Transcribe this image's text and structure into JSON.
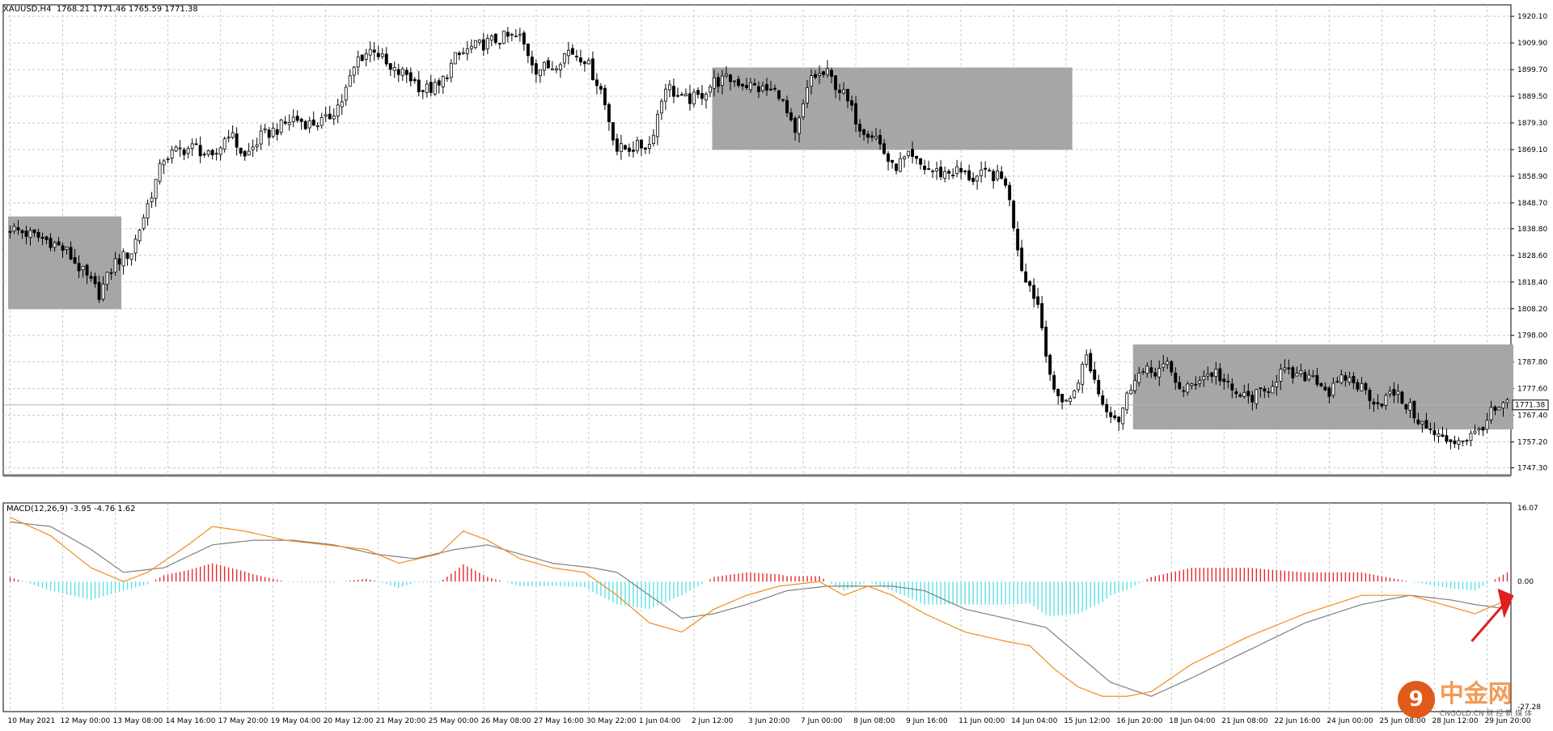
{
  "header": {
    "symbol": "XAUUSD,H4",
    "ohlc": "1768.21 1771.46 1765.59 1771.38"
  },
  "macd_header": "MACD(12,26,9) -3.95 -4.76 1.62",
  "current_price_label": "1771.38",
  "colors": {
    "bull": "#ffffff",
    "bear": "#000000",
    "box": "#a6a6a6",
    "grid": "#c8c8c8",
    "hist_pos": "#e32b2b",
    "hist_neg": "#5ee0e8",
    "macd_line": "#f08c1c",
    "signal_line": "#808080",
    "arrow": "#e01f1f"
  },
  "watermark": {
    "cn": "中金网",
    "en": "CNGOLD.CN 财 经 新 媒 体"
  },
  "chart_data": [
    {
      "type": "candlestick",
      "title": "XAUUSD,H4",
      "ylim": [
        1745.0,
        1922.0
      ],
      "y_ticks": [
        "1920.10",
        "1909.90",
        "1899.70",
        "1889.50",
        "1879.30",
        "1869.10",
        "1858.90",
        "1848.70",
        "1838.80",
        "1828.60",
        "1818.40",
        "1808.20",
        "1798.00",
        "1787.80",
        "1777.60",
        "1767.40",
        "1757.20",
        "1747.30"
      ],
      "x_tick_labels": [
        "10 May 2021",
        "12 May 00:00",
        "13 May 08:00",
        "14 May 16:00",
        "17 May 20:00",
        "19 May 04:00",
        "20 May 12:00",
        "21 May 20:00",
        "25 May 00:00",
        "26 May 08:00",
        "27 May 16:00",
        "30 May 22:00",
        "1 Jun 04:00",
        "2 Jun 12:00",
        "3 Jun 20:00",
        "7 Jun 00:00",
        "8 Jun 08:00",
        "9 Jun 16:00",
        "11 Jun 00:00",
        "14 Jun 04:00",
        "15 Jun 12:00",
        "16 Jun 20:00",
        "18 Jun 04:00",
        "21 Jun 08:00",
        "22 Jun 16:00",
        "24 Jun 00:00",
        "25 Jun 08:00",
        "28 Jun 12:00",
        "29 Jun 20:00"
      ],
      "anchors": [
        [
          0,
          1839
        ],
        [
          6,
          1836
        ],
        [
          10,
          1834
        ],
        [
          14,
          1830
        ],
        [
          18,
          1822
        ],
        [
          22,
          1814
        ],
        [
          26,
          1826
        ],
        [
          30,
          1830
        ],
        [
          34,
          1848
        ],
        [
          38,
          1866
        ],
        [
          42,
          1869
        ],
        [
          46,
          1870
        ],
        [
          50,
          1865
        ],
        [
          54,
          1876
        ],
        [
          58,
          1866
        ],
        [
          62,
          1874
        ],
        [
          66,
          1877
        ],
        [
          70,
          1881
        ],
        [
          74,
          1879
        ],
        [
          78,
          1880
        ],
        [
          82,
          1888
        ],
        [
          86,
          1904
        ],
        [
          90,
          1908
        ],
        [
          94,
          1899
        ],
        [
          98,
          1898
        ],
        [
          102,
          1892
        ],
        [
          106,
          1893
        ],
        [
          110,
          1904
        ],
        [
          114,
          1908
        ],
        [
          118,
          1910
        ],
        [
          122,
          1912
        ],
        [
          126,
          1912
        ],
        [
          130,
          1900
        ],
        [
          134,
          1901
        ],
        [
          138,
          1907
        ],
        [
          142,
          1904
        ],
        [
          146,
          1892
        ],
        [
          150,
          1869
        ],
        [
          154,
          1870
        ],
        [
          158,
          1871
        ],
        [
          162,
          1894
        ],
        [
          166,
          1888
        ],
        [
          170,
          1889
        ],
        [
          174,
          1895
        ],
        [
          178,
          1896
        ],
        [
          182,
          1894
        ],
        [
          186,
          1892
        ],
        [
          190,
          1891
        ],
        [
          194,
          1874
        ],
        [
          198,
          1897
        ],
        [
          202,
          1898
        ],
        [
          206,
          1890
        ],
        [
          210,
          1878
        ],
        [
          214,
          1874
        ],
        [
          218,
          1862
        ],
        [
          222,
          1866
        ],
        [
          226,
          1862
        ],
        [
          230,
          1860
        ],
        [
          234,
          1861
        ],
        [
          238,
          1858
        ],
        [
          242,
          1860
        ],
        [
          246,
          1857
        ],
        [
          250,
          1824
        ],
        [
          254,
          1810
        ],
        [
          258,
          1775
        ],
        [
          262,
          1773
        ],
        [
          266,
          1790
        ],
        [
          270,
          1772
        ],
        [
          274,
          1766
        ],
        [
          278,
          1783
        ],
        [
          282,
          1784
        ],
        [
          286,
          1786
        ],
        [
          290,
          1776
        ],
        [
          294,
          1782
        ],
        [
          298,
          1784
        ],
        [
          302,
          1776
        ],
        [
          306,
          1774
        ],
        [
          310,
          1776
        ],
        [
          314,
          1784
        ],
        [
          318,
          1782
        ],
        [
          322,
          1783
        ],
        [
          326,
          1776
        ],
        [
          330,
          1782
        ],
        [
          334,
          1778
        ],
        [
          338,
          1772
        ],
        [
          342,
          1776
        ],
        [
          346,
          1770
        ],
        [
          350,
          1762
        ],
        [
          354,
          1758
        ],
        [
          358,
          1758
        ],
        [
          362,
          1760
        ],
        [
          366,
          1768
        ],
        [
          370,
          1771.38
        ]
      ]
    },
    {
      "type": "macd",
      "title": "MACD(12,26,9)",
      "values": {
        "macd": -3.95,
        "signal": -4.76,
        "histogram": 1.62
      },
      "ylim": [
        -27.28,
        16.07
      ],
      "y_ticks": [
        "16.07",
        "0.00",
        "-27.28"
      ],
      "macd_anchors": [
        [
          0,
          14
        ],
        [
          10,
          10
        ],
        [
          20,
          3
        ],
        [
          28,
          0
        ],
        [
          34,
          2
        ],
        [
          44,
          8
        ],
        [
          50,
          12
        ],
        [
          58,
          11
        ],
        [
          68,
          9
        ],
        [
          78,
          8
        ],
        [
          88,
          7
        ],
        [
          96,
          4
        ],
        [
          106,
          6
        ],
        [
          112,
          11
        ],
        [
          118,
          9
        ],
        [
          126,
          5
        ],
        [
          134,
          3
        ],
        [
          142,
          2
        ],
        [
          150,
          -3
        ],
        [
          158,
          -9
        ],
        [
          166,
          -11
        ],
        [
          174,
          -6
        ],
        [
          182,
          -3
        ],
        [
          190,
          -1
        ],
        [
          200,
          0
        ],
        [
          206,
          -3
        ],
        [
          212,
          -1
        ],
        [
          218,
          -3
        ],
        [
          226,
          -7
        ],
        [
          236,
          -11
        ],
        [
          246,
          -13
        ],
        [
          252,
          -14
        ],
        [
          258,
          -19
        ],
        [
          264,
          -23
        ],
        [
          270,
          -25
        ],
        [
          276,
          -25
        ],
        [
          282,
          -24
        ],
        [
          292,
          -18
        ],
        [
          306,
          -12
        ],
        [
          320,
          -7
        ],
        [
          334,
          -3
        ],
        [
          346,
          -3
        ],
        [
          354,
          -5
        ],
        [
          362,
          -7
        ],
        [
          370,
          -4
        ]
      ],
      "signal_anchors": [
        [
          0,
          13
        ],
        [
          10,
          12
        ],
        [
          20,
          7
        ],
        [
          28,
          2
        ],
        [
          38,
          3
        ],
        [
          50,
          8
        ],
        [
          60,
          9
        ],
        [
          70,
          9
        ],
        [
          80,
          8
        ],
        [
          90,
          6
        ],
        [
          100,
          5
        ],
        [
          110,
          7
        ],
        [
          118,
          8
        ],
        [
          126,
          6
        ],
        [
          134,
          4
        ],
        [
          144,
          3
        ],
        [
          150,
          2
        ],
        [
          158,
          -3
        ],
        [
          166,
          -8
        ],
        [
          174,
          -7
        ],
        [
          182,
          -5
        ],
        [
          192,
          -2
        ],
        [
          202,
          -1
        ],
        [
          210,
          -1
        ],
        [
          218,
          -1
        ],
        [
          226,
          -2
        ],
        [
          236,
          -6
        ],
        [
          246,
          -8
        ],
        [
          256,
          -10
        ],
        [
          264,
          -16
        ],
        [
          272,
          -22
        ],
        [
          282,
          -25
        ],
        [
          292,
          -21
        ],
        [
          306,
          -15
        ],
        [
          320,
          -9
        ],
        [
          334,
          -5
        ],
        [
          346,
          -3
        ],
        [
          356,
          -4
        ],
        [
          362,
          -5
        ],
        [
          370,
          -6
        ]
      ]
    }
  ]
}
